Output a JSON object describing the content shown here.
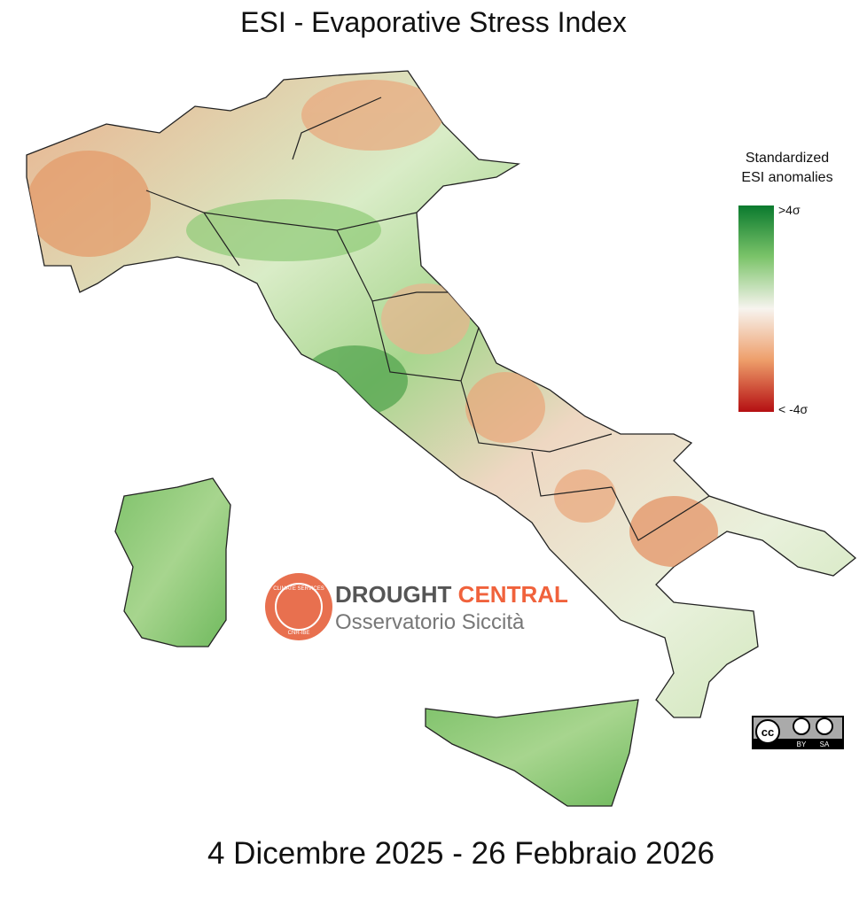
{
  "header": {
    "title": "ESI - Evaporative Stress Index"
  },
  "legend": {
    "title": [
      "Standardized",
      "ESI anomalies"
    ],
    "max_label": ">4σ",
    "min_label": "< -4σ"
  },
  "logo": {
    "ring_top": "CLIMATE SERVICES",
    "ring_bottom": "CNR-IBE",
    "name_1": "DROUGHT",
    "name_2": "CENTRAL",
    "subtitle": "Osservatorio Siccità"
  },
  "license": {
    "cc": "cc",
    "by": "BY",
    "sa": "SA"
  },
  "footer": {
    "date": "4 Dicembre 2025 - 26 Febbraio 2026"
  }
}
